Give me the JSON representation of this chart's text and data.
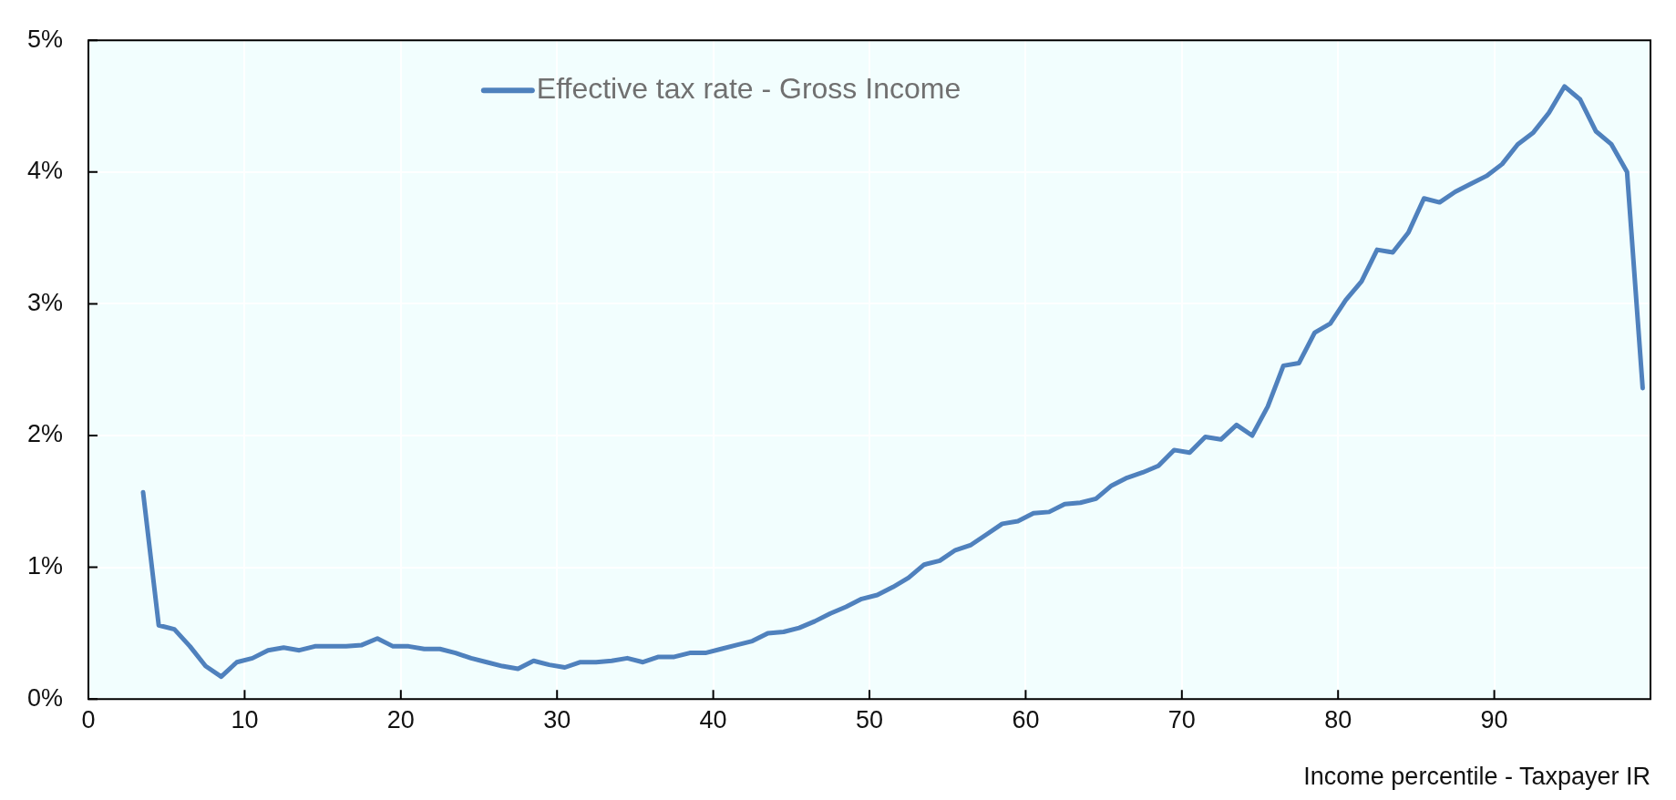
{
  "chart_data": {
    "type": "line",
    "xlabel": "Income percentile - Taxpayer IR",
    "xlim": [
      0,
      100
    ],
    "xticks": [
      0,
      10,
      20,
      30,
      40,
      50,
      60,
      70,
      80,
      90
    ],
    "ylim": [
      0,
      5
    ],
    "yticks": [
      {
        "value": 0,
        "label": "0%"
      },
      {
        "value": 1,
        "label": "1%"
      },
      {
        "value": 2,
        "label": "2%"
      },
      {
        "value": 3,
        "label": "3%"
      },
      {
        "value": 4,
        "label": "4%"
      },
      {
        "value": 5,
        "label": "5%"
      }
    ],
    "grid": true,
    "legend": "top",
    "marker": "none",
    "line_style": "solid",
    "x": [
      3.5,
      4.5,
      5.5,
      6.5,
      7.5,
      8.5,
      9.5,
      10.5,
      11.5,
      12.5,
      13.5,
      14.5,
      15.5,
      16.5,
      17.5,
      18.5,
      19.5,
      20.5,
      21.5,
      22.5,
      23.5,
      24.5,
      25.5,
      26.5,
      27.5,
      28.5,
      29.5,
      30.5,
      31.5,
      32.5,
      33.5,
      34.5,
      35.5,
      36.5,
      37.5,
      38.5,
      39.5,
      40.5,
      41.5,
      42.5,
      43.5,
      44.5,
      45.5,
      46.5,
      47.5,
      48.5,
      49.5,
      50.5,
      51.5,
      52.5,
      53.5,
      54.5,
      55.5,
      56.5,
      57.5,
      58.5,
      59.5,
      60.5,
      61.5,
      62.5,
      63.5,
      64.5,
      65.5,
      66.5,
      67.5,
      68.5,
      69.5,
      70.5,
      71.5,
      72.5,
      73.5,
      74.5,
      75.5,
      76.5,
      77.5,
      78.5,
      79.5,
      80.5,
      81.5,
      82.5,
      83.5,
      84.5,
      85.5,
      86.5,
      87.5,
      88.5,
      89.5,
      90.5,
      91.5,
      92.5,
      93.5,
      94.5,
      95.5,
      96.5,
      97.5,
      98.5,
      99.5
    ],
    "series": [
      {
        "name": "Effective tax rate - Gross Income",
        "color": "#4f81bd",
        "values": [
          1.57,
          0.56,
          0.53,
          0.4,
          0.25,
          0.17,
          0.28,
          0.31,
          0.37,
          0.39,
          0.37,
          0.4,
          0.4,
          0.4,
          0.41,
          0.46,
          0.4,
          0.4,
          0.38,
          0.38,
          0.35,
          0.31,
          0.28,
          0.25,
          0.23,
          0.29,
          0.26,
          0.24,
          0.28,
          0.28,
          0.29,
          0.31,
          0.28,
          0.32,
          0.32,
          0.35,
          0.35,
          0.38,
          0.41,
          0.44,
          0.5,
          0.51,
          0.54,
          0.59,
          0.65,
          0.7,
          0.76,
          0.79,
          0.85,
          0.92,
          1.02,
          1.05,
          1.13,
          1.17,
          1.25,
          1.33,
          1.35,
          1.41,
          1.42,
          1.48,
          1.49,
          1.52,
          1.62,
          1.68,
          1.72,
          1.77,
          1.89,
          1.87,
          1.99,
          1.97,
          2.08,
          2.0,
          2.22,
          2.53,
          2.55,
          2.78,
          2.85,
          3.03,
          3.17,
          3.41,
          3.39,
          3.54,
          3.8,
          3.77,
          3.85,
          3.91,
          3.97,
          4.06,
          4.21,
          4.3,
          4.45,
          4.65,
          4.55,
          4.31,
          4.21,
          4.0,
          2.36
        ]
      }
    ]
  }
}
